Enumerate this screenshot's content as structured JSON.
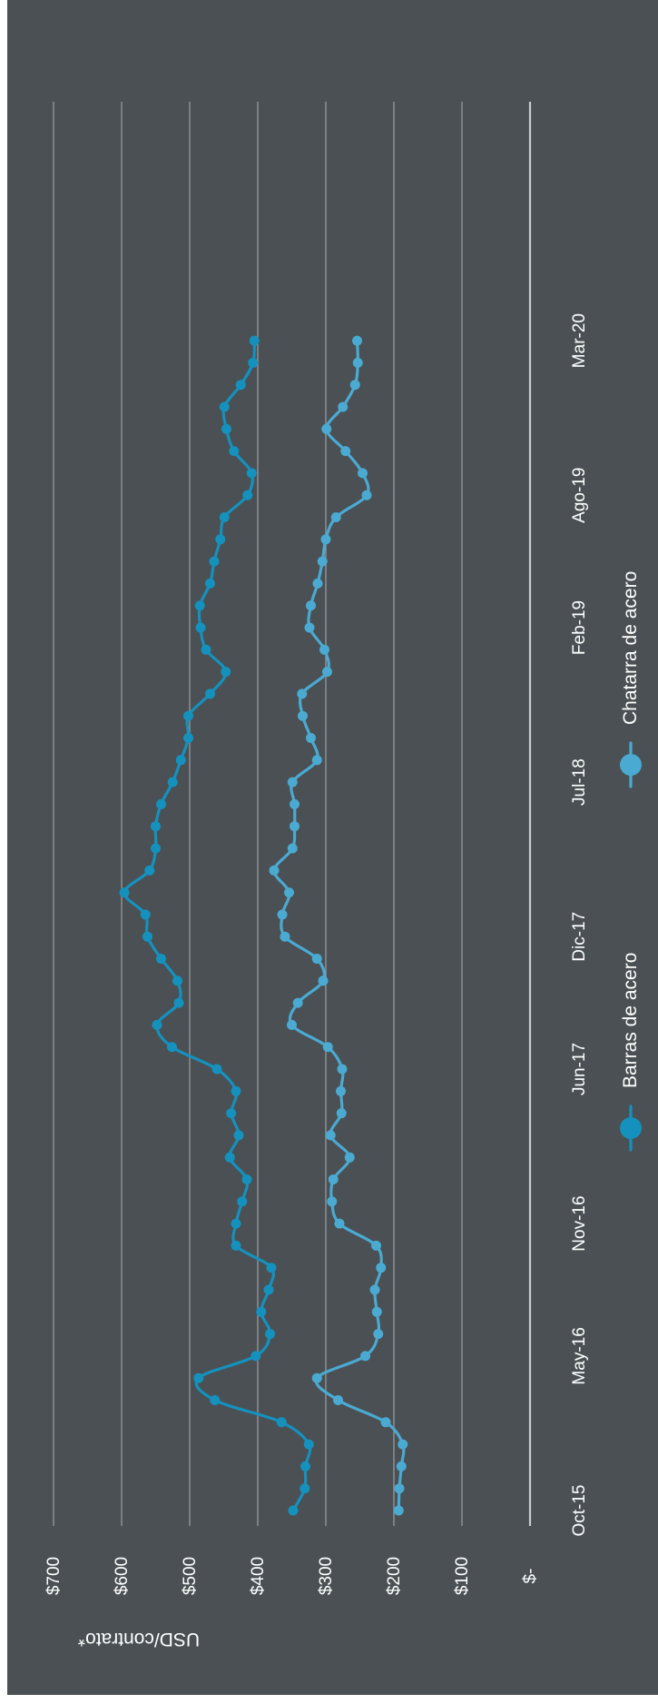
{
  "chart_data": {
    "type": "line",
    "orientation": "rotated-90-clockwise",
    "ylabel": "USD/contrato*",
    "y_tick_labels": [
      "$-",
      "$100",
      "$200",
      "$300",
      "$400",
      "$500",
      "$600",
      "$700"
    ],
    "y_tick_values": [
      0,
      100,
      200,
      300,
      400,
      500,
      600,
      700
    ],
    "ylim": [
      0,
      700
    ],
    "x_tick_labels": [
      "Oct-15",
      "May-16",
      "Nov-16",
      "Jun-17",
      "Dic-17",
      "Jul-18",
      "Feb-19",
      "Ago-19",
      "Mar-20"
    ],
    "x_tick_index": [
      0,
      7,
      13,
      20,
      26,
      33,
      40,
      46,
      53
    ],
    "grid": true,
    "legend_position": "bottom",
    "series": [
      {
        "name": "Barras de acero",
        "color": "#1591be",
        "values": [
          348,
          331,
          330,
          325,
          365,
          463,
          487,
          403,
          382,
          395,
          384,
          380,
          432,
          432,
          423,
          416,
          441,
          428,
          439,
          432,
          460,
          526,
          548,
          516,
          518,
          542,
          562,
          565,
          596,
          559,
          550,
          550,
          542,
          525,
          513,
          502,
          502,
          470,
          447,
          476,
          484,
          485,
          470,
          464,
          455,
          449,
          415,
          409,
          435,
          446,
          449,
          425,
          407,
          405
        ]
      },
      {
        "name": "Chatarra de acero",
        "color": "#4aaad2",
        "values": [
          193,
          192,
          189,
          187,
          212,
          282,
          313,
          242,
          223,
          225,
          228,
          219,
          226,
          280,
          291,
          289,
          265,
          293,
          277,
          278,
          276,
          297,
          350,
          341,
          304,
          313,
          360,
          364,
          354,
          376,
          349,
          346,
          346,
          349,
          313,
          322,
          334,
          335,
          298,
          302,
          324,
          322,
          312,
          305,
          300,
          285,
          240,
          246,
          271,
          299,
          275,
          257,
          253,
          254
        ]
      }
    ]
  }
}
